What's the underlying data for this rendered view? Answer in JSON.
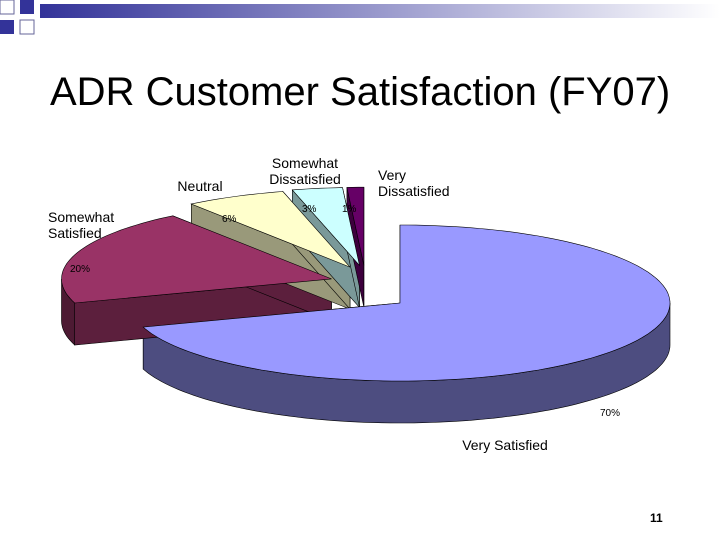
{
  "chart_data": {
    "type": "pie3d",
    "title": "ADR Customer Satisfaction (FY07)",
    "categories": [
      "Very Satisfied",
      "Somewhat Satisfied",
      "Neutral",
      "Somewhat Dissatisfied",
      "Very Dissatisfied"
    ],
    "values": [
      70,
      20,
      6,
      3,
      1
    ],
    "value_labels": [
      "70%",
      "20%",
      "6%",
      "3%",
      "1%"
    ],
    "colors": [
      "#9999ff",
      "#993366",
      "#ffffcc",
      "#ccffff",
      "#660066"
    ]
  },
  "slide_number": "11"
}
